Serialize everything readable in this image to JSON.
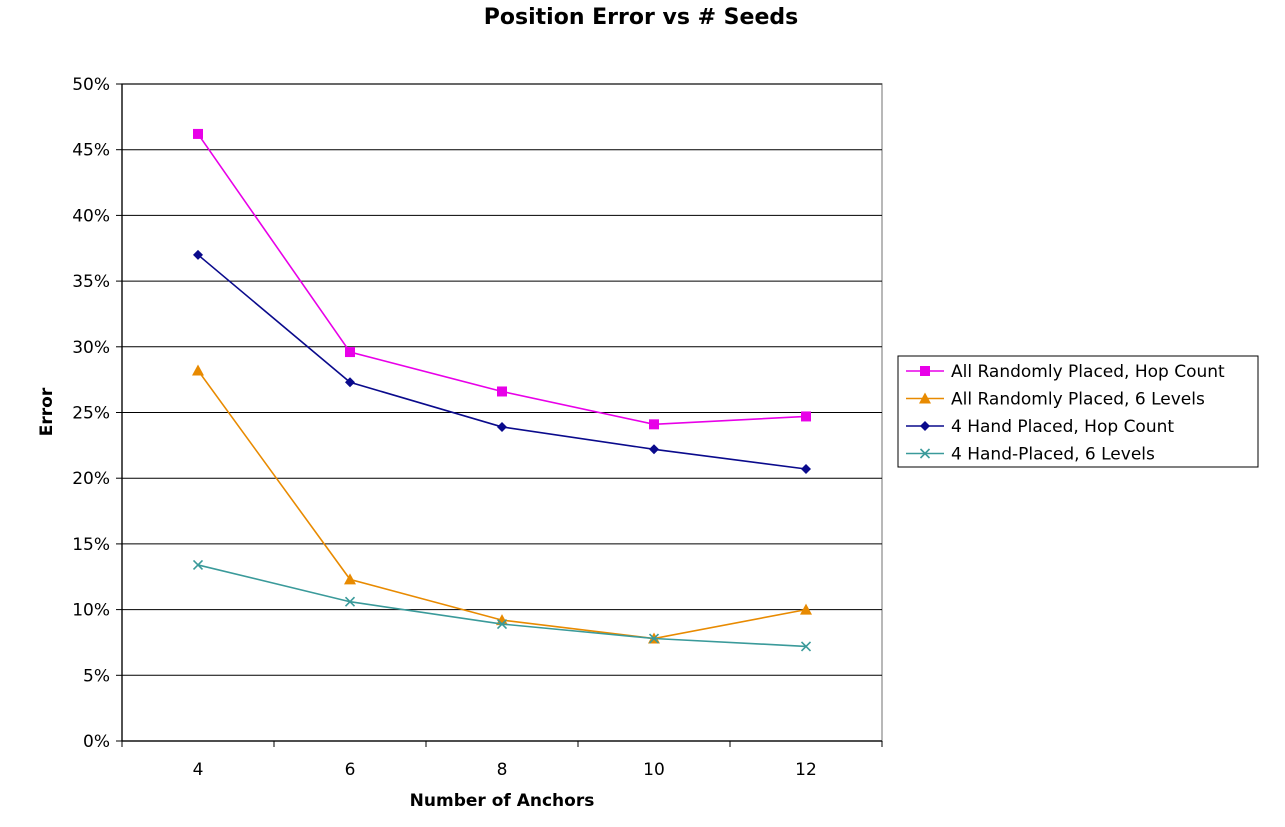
{
  "chart_data": {
    "type": "line",
    "title": "Position Error vs # Seeds",
    "xlabel": "Number of Anchors",
    "ylabel": "Error",
    "categories": [
      "4",
      "6",
      "8",
      "10",
      "12"
    ],
    "ylim": [
      0,
      50
    ],
    "yticks": [
      0,
      5,
      10,
      15,
      20,
      25,
      30,
      35,
      40,
      45,
      50
    ],
    "ytick_labels": [
      "0%",
      "5%",
      "10%",
      "15%",
      "20%",
      "25%",
      "30%",
      "35%",
      "40%",
      "45%",
      "50%"
    ],
    "grid": true,
    "legend_position": "right",
    "series": [
      {
        "name": "All Randomly Placed, Hop Count",
        "color": "#e800e8",
        "marker": "square",
        "values": [
          46.2,
          29.6,
          26.6,
          24.1,
          24.7
        ]
      },
      {
        "name": "All Randomly Placed, 6 Levels",
        "color": "#e88a00",
        "marker": "triangle",
        "values": [
          28.2,
          12.3,
          9.2,
          7.8,
          10.0
        ]
      },
      {
        "name": "4 Hand Placed, Hop Count",
        "color": "#0a0a8c",
        "marker": "diamond",
        "values": [
          37.0,
          27.3,
          23.9,
          22.2,
          20.7
        ]
      },
      {
        "name": "4 Hand-Placed, 6 Levels",
        "color": "#3a9a9a",
        "marker": "x",
        "values": [
          13.4,
          10.6,
          8.9,
          7.8,
          7.2
        ]
      }
    ]
  }
}
